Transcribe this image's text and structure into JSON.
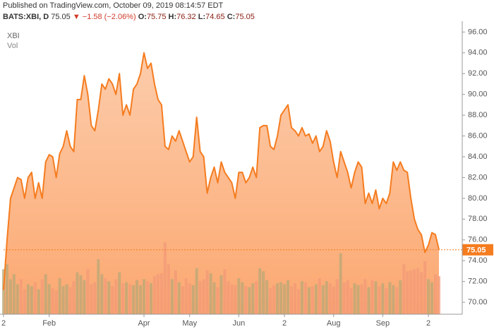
{
  "header": {
    "published": "Published on TradingView.com, October 09, 2019 08:14:57 EDT",
    "symbol": "BATS:XBI, D",
    "last": "75.05",
    "arrow": "▼",
    "change": "−1.58 (−2.06%)",
    "open_label": "O:",
    "open": "75.75",
    "high_label": "H:",
    "high": "76.32",
    "low_label": "L:",
    "low": "74.65",
    "close_label": "C:",
    "close": "75.05"
  },
  "chart_data": {
    "type": "area",
    "series_label": "XBI",
    "volume_label": "Vol",
    "categories": [
      "2",
      null,
      null,
      null,
      null,
      null,
      null,
      null,
      null,
      null,
      null,
      null,
      null,
      "Feb",
      null,
      null,
      null,
      null,
      null,
      null,
      null,
      null,
      null,
      null,
      null,
      null,
      null,
      null,
      null,
      null,
      null,
      null,
      null,
      null,
      null,
      null,
      null,
      null,
      null,
      null,
      "Apr",
      null,
      null,
      null,
      null,
      null,
      null,
      null,
      null,
      null,
      null,
      null,
      null,
      "May",
      null,
      null,
      null,
      null,
      null,
      null,
      null,
      null,
      null,
      null,
      null,
      null,
      null,
      "Jun",
      null,
      null,
      null,
      null,
      null,
      null,
      null,
      null,
      null,
      null,
      null,
      null,
      "2",
      null,
      null,
      null,
      null,
      null,
      null,
      null,
      null,
      null,
      null,
      null,
      null,
      null,
      "Aug",
      null,
      null,
      null,
      null,
      null,
      null,
      null,
      null,
      null,
      null,
      null,
      null,
      null,
      "Sep",
      null,
      null,
      null,
      null,
      null,
      null,
      null,
      null,
      null,
      null,
      null,
      null,
      "2",
      null,
      null,
      null
    ],
    "series": [
      {
        "name": "XBI",
        "color": "#f57c1f",
        "fill": "#fba368",
        "values": [
          71.2,
          76,
          80,
          81,
          82,
          81.8,
          80,
          82,
          82.5,
          80,
          81.5,
          80,
          83.5,
          84.2,
          84,
          82,
          84.3,
          85,
          86.5,
          85,
          84.5,
          89.5,
          89.5,
          91.8,
          90,
          87,
          86.5,
          88.5,
          91,
          90.5,
          91.5,
          91,
          90,
          92,
          88,
          89,
          88,
          90.5,
          91,
          92,
          94,
          92.5,
          93,
          91,
          89.5,
          89,
          85,
          84.7,
          86,
          85.5,
          86.5,
          85.5,
          84.5,
          83.5,
          84,
          87.8,
          84.5,
          84,
          80.5,
          82,
          83,
          81.5,
          83.5,
          82.5,
          82,
          81.5,
          80,
          82.5,
          82.5,
          81.5,
          82,
          83,
          82,
          86.8,
          87,
          87,
          85,
          84.7,
          86,
          88,
          88.5,
          89,
          86.8,
          86.5,
          86,
          86.8,
          86,
          86.2,
          85.3,
          86,
          84.5,
          85,
          86.5,
          85.5,
          83.5,
          82,
          84.5,
          83.5,
          82.5,
          81,
          82.5,
          83.5,
          83,
          79.5,
          80.5,
          79.5,
          80.8,
          79,
          80,
          79.5,
          80.5,
          83.5,
          82.7,
          83.5,
          82.7,
          82.5,
          80,
          78,
          77,
          76.5,
          74.8,
          75.5,
          76.7,
          76.5,
          75.05
        ]
      }
    ],
    "volume": {
      "name": "Vol",
      "up_color": "#b9a877",
      "down_color": "#f39a78",
      "values": [
        4.5,
        5,
        3.5,
        4,
        3,
        3.5,
        2.5,
        3,
        2.8,
        3.2,
        2.5,
        3.5,
        4,
        3,
        2.6,
        2.4,
        3.6,
        2.8,
        3,
        2.7,
        3.3,
        4.2,
        3.9,
        3.4,
        4.5,
        3,
        3.2,
        5.5,
        4,
        3.6,
        3.3,
        2.8,
        3.5,
        4.2,
        3.1,
        3.2,
        3,
        2.9,
        3.4,
        2.9,
        3.5,
        3.3,
        3.1,
        3.8,
        4,
        4.1,
        7.2,
        5,
        3.5,
        4.4,
        3.2,
        2.8,
        3.6,
        3.1,
        2.9,
        4.6,
        3.3,
        3.5,
        4.4,
        4.1,
        3.2,
        2.7,
        3.9,
        4.5,
        3.3,
        3,
        2.9,
        3.6,
        3.2,
        2.8,
        2.7,
        3.1,
        3.3,
        4.6,
        4.3,
        3.4,
        2.6,
        2.9,
        3.1,
        3.2,
        3,
        3.4,
        2.8,
        3.1,
        2.5,
        3.3,
        3.2,
        2.7,
        2.8,
        3,
        3.6,
        2.9,
        3.3,
        3.1,
        2.8,
        3.5,
        6.1,
        3.2,
        3.4,
        2.6,
        3.1,
        2.9,
        3,
        3.5,
        2.7,
        3.4,
        3.3,
        2.8,
        3.1,
        2.6,
        3.2,
        2.9,
        2.7,
        3.4,
        5,
        4.3,
        4.4,
        4.5,
        4.6,
        4.2,
        5.3,
        3.5,
        3.2,
        4,
        3.8
      ]
    },
    "ylim": [
      68.85,
      96.5
    ],
    "yticks": [
      {
        "value": 70,
        "label": "70.00"
      },
      {
        "value": 72,
        "label": "72.00"
      },
      {
        "value": 74,
        "label": "74.00"
      },
      {
        "value": 76,
        "label": "76.00"
      },
      {
        "value": 78,
        "label": "78.00"
      },
      {
        "value": 80,
        "label": "80.00"
      },
      {
        "value": 82,
        "label": "82.00"
      },
      {
        "value": 84,
        "label": "84.00"
      },
      {
        "value": 86,
        "label": "86.00"
      },
      {
        "value": 88,
        "label": "88.00"
      },
      {
        "value": 90,
        "label": "90.00"
      },
      {
        "value": 92,
        "label": "92.00"
      },
      {
        "value": 94,
        "label": "94.00"
      },
      {
        "value": 96,
        "label": "96.00"
      }
    ],
    "last_label": "75.05"
  }
}
